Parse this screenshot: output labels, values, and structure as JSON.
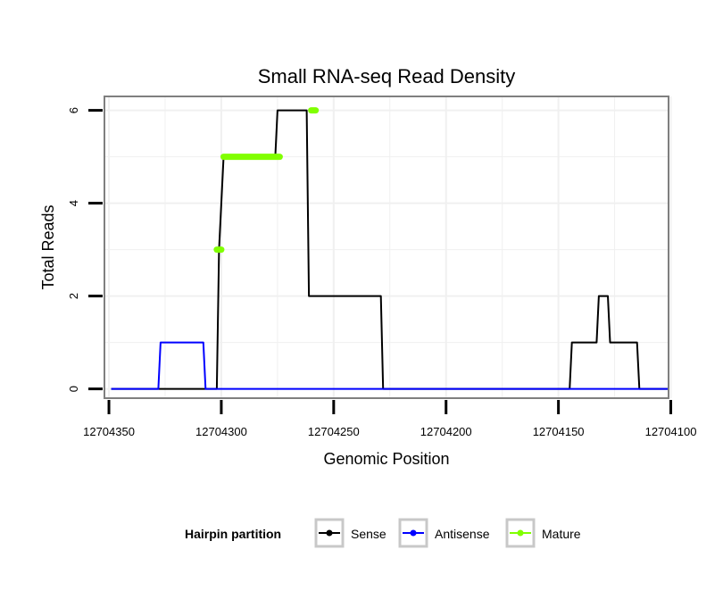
{
  "chart_data": {
    "type": "line",
    "title": "Small RNA-seq Read Density",
    "xlabel": "Genomic Position",
    "ylabel": "Total Reads",
    "xlim": [
      12704352,
      12704101
    ],
    "x_reversed": true,
    "ylim": [
      -0.2,
      6.3
    ],
    "xticks": [
      12704350,
      12704300,
      12704250,
      12704200,
      12704150,
      12704100
    ],
    "xtick_labels": [
      "12704350",
      "12704300",
      "12704250",
      "12704200",
      "12704150",
      "12704100"
    ],
    "yticks": [
      0,
      2,
      4,
      6
    ],
    "ytick_labels": [
      "0",
      "2",
      "4",
      "6"
    ],
    "grid": true,
    "legend": {
      "title": "Hairpin partition",
      "position": "bottom",
      "entries": [
        "Sense",
        "Antisense",
        "Mature"
      ]
    },
    "series": [
      {
        "name": "Sense",
        "color": "#000000",
        "x": [
          12704349,
          12704302,
          12704301,
          12704299,
          12704276,
          12704275,
          12704262,
          12704261,
          12704229,
          12704228,
          12704145,
          12704144,
          12704133,
          12704132,
          12704128,
          12704127,
          12704115,
          12704114,
          12704101
        ],
        "y": [
          0,
          0,
          3,
          5,
          5,
          6,
          6,
          2,
          2,
          0,
          0,
          1,
          1,
          2,
          2,
          1,
          1,
          0,
          0
        ]
      },
      {
        "name": "Antisense",
        "color": "#0000ff",
        "x": [
          12704349,
          12704328,
          12704327,
          12704308,
          12704307,
          12704101
        ],
        "y": [
          0,
          0,
          1,
          1,
          0,
          0
        ]
      },
      {
        "name": "Mature",
        "color": "#80ff00",
        "segments": [
          {
            "x": [
              12704302,
              12704300
            ],
            "y": [
              3,
              3
            ]
          },
          {
            "x": [
              12704299,
              12704274
            ],
            "y": [
              5,
              5
            ]
          },
          {
            "x": [
              12704260,
              12704258
            ],
            "y": [
              6,
              6
            ]
          }
        ]
      }
    ]
  }
}
